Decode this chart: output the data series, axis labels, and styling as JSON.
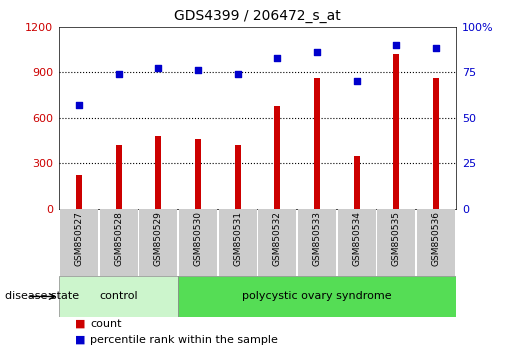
{
  "title": "GDS4399 / 206472_s_at",
  "samples": [
    "GSM850527",
    "GSM850528",
    "GSM850529",
    "GSM850530",
    "GSM850531",
    "GSM850532",
    "GSM850533",
    "GSM850534",
    "GSM850535",
    "GSM850536"
  ],
  "counts": [
    220,
    420,
    480,
    460,
    420,
    680,
    860,
    350,
    1020,
    860
  ],
  "percentiles": [
    57,
    74,
    77,
    76,
    74,
    83,
    86,
    70,
    90,
    88
  ],
  "bar_color": "#cc0000",
  "dot_color": "#0000cc",
  "ylim_left": [
    0,
    1200
  ],
  "ylim_right": [
    0,
    100
  ],
  "yticks_left": [
    0,
    300,
    600,
    900,
    1200
  ],
  "yticks_right": [
    0,
    25,
    50,
    75,
    100
  ],
  "groups": [
    {
      "label": "control",
      "indices": [
        0,
        1,
        2
      ],
      "color": "#ccf5cc"
    },
    {
      "label": "polycystic ovary syndrome",
      "indices": [
        3,
        4,
        5,
        6,
        7,
        8,
        9
      ],
      "color": "#55dd55"
    }
  ],
  "disease_state_label": "disease state",
  "legend_count_label": "count",
  "legend_pct_label": "percentile rank within the sample",
  "bg_color": "#ffffff",
  "plot_bg": "#ffffff",
  "tick_bg": "#cccccc",
  "title_fontsize": 10,
  "tick_fontsize": 8,
  "bar_width": 0.15
}
